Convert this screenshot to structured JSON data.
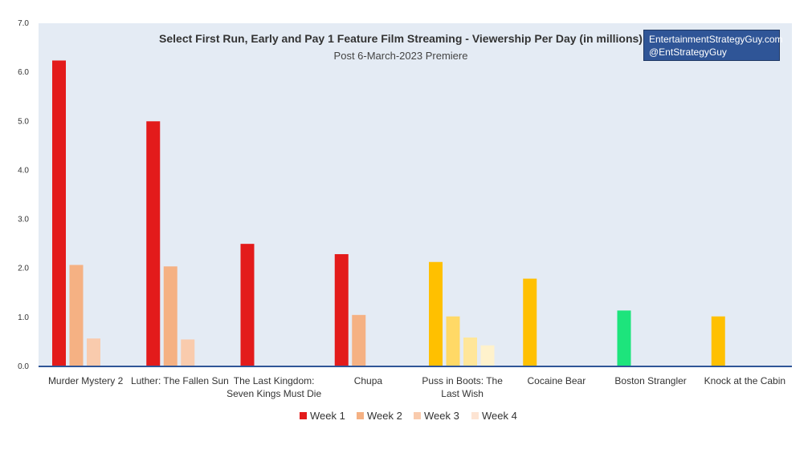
{
  "chart_data": {
    "type": "bar",
    "title": "Select First Run, Early and Pay 1 Feature Film Streaming - Viewership Per Day (in millions)",
    "subtitle": "Post 6-March-2023 Premiere",
    "categories": [
      [
        "Murder Mystery 2"
      ],
      [
        "Luther: The Fallen Sun"
      ],
      [
        "The Last Kingdom:",
        "Seven Kings Must Die"
      ],
      [
        "Chupa"
      ],
      [
        "Puss in Boots: The",
        "Last Wish"
      ],
      [
        "Cocaine Bear"
      ],
      [
        "Boston Strangler"
      ],
      [
        "Knock at the Cabin"
      ]
    ],
    "series": [
      {
        "name": "Week 1",
        "values": [
          6.24,
          5.0,
          2.5,
          2.29,
          2.13,
          1.79,
          1.14,
          1.02
        ]
      },
      {
        "name": "Week 2",
        "values": [
          2.07,
          2.04,
          null,
          1.05,
          1.02,
          null,
          null,
          null
        ]
      },
      {
        "name": "Week 3",
        "values": [
          0.57,
          0.55,
          null,
          null,
          0.59,
          null,
          null,
          null
        ]
      },
      {
        "name": "Week 4",
        "values": [
          null,
          null,
          null,
          null,
          0.43,
          null,
          null,
          null
        ]
      }
    ],
    "colors": [
      [
        "#e31b1b",
        "#f5b183",
        "#f9cbad",
        "#fde4d3"
      ],
      [
        "#e31b1b",
        "#f5b183",
        "#f9cbad",
        "#fde4d3"
      ],
      [
        "#e31b1b",
        "#f5b183",
        "#f9cbad",
        "#fde4d3"
      ],
      [
        "#e31b1b",
        "#f5b183",
        "#f9cbad",
        "#fde4d3"
      ],
      [
        "#ffc000",
        "#ffd966",
        "#ffe699",
        "#fff2cc"
      ],
      [
        "#ffc000",
        "#ffd966",
        "#ffe699",
        "#fff2cc"
      ],
      [
        "#1de47c",
        "#1de47c",
        "#1de47c",
        "#1de47c"
      ],
      [
        "#ffc000",
        "#ffd966",
        "#ffe699",
        "#fff2cc"
      ]
    ],
    "legend_colors": [
      "#e31b1b",
      "#f5b183",
      "#f9cbad",
      "#fde4d3"
    ],
    "ylim": [
      0,
      7
    ],
    "yticks": [
      "0.0",
      "1.0",
      "2.0",
      "3.0",
      "4.0",
      "5.0",
      "6.0",
      "7.0"
    ],
    "legend_position": "bottom",
    "plot_background": "#e4ebf4",
    "axis_color": "#2f5597"
  },
  "badge": {
    "line1": "EntertainmentStrategyGuy.com",
    "line2": "@EntStrategyGuy"
  }
}
